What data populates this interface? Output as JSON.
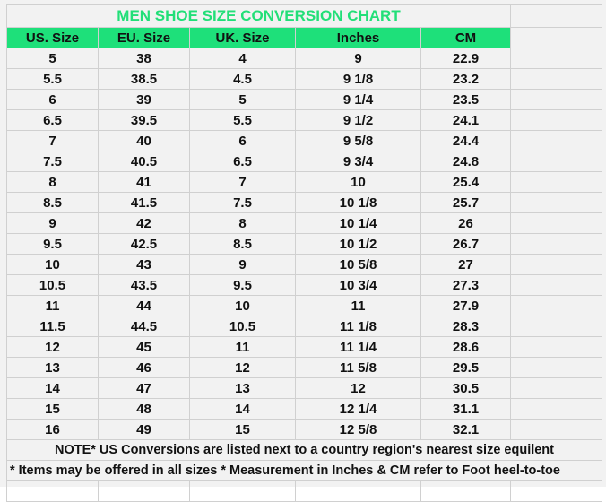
{
  "title": "MEN SHOE SIZE CONVERSION CHART",
  "headers": [
    "US. Size",
    "EU. Size",
    "UK. Size",
    "Inches",
    "CM"
  ],
  "rows": [
    [
      "5",
      "38",
      "4",
      "9",
      "22.9"
    ],
    [
      "5.5",
      "38.5",
      "4.5",
      "9 1/8",
      "23.2"
    ],
    [
      "6",
      "39",
      "5",
      "9 1/4",
      "23.5"
    ],
    [
      "6.5",
      "39.5",
      "5.5",
      "9 1/2",
      "24.1"
    ],
    [
      "7",
      "40",
      "6",
      "9 5/8",
      "24.4"
    ],
    [
      "7.5",
      "40.5",
      "6.5",
      "9 3/4",
      "24.8"
    ],
    [
      "8",
      "41",
      "7",
      "10",
      "25.4"
    ],
    [
      "8.5",
      "41.5",
      "7.5",
      "10 1/8",
      "25.7"
    ],
    [
      "9",
      "42",
      "8",
      "10 1/4",
      "26"
    ],
    [
      "9.5",
      "42.5",
      "8.5",
      "10 1/2",
      "26.7"
    ],
    [
      "10",
      "43",
      "9",
      "10 5/8",
      "27"
    ],
    [
      "10.5",
      "43.5",
      "9.5",
      "10 3/4",
      "27.3"
    ],
    [
      "11",
      "44",
      "10",
      "11",
      "27.9"
    ],
    [
      "11.5",
      "44.5",
      "10.5",
      "11 1/8",
      "28.3"
    ],
    [
      "12",
      "45",
      "11",
      "11 1/4",
      "28.6"
    ],
    [
      "13",
      "46",
      "12",
      "11 5/8",
      "29.5"
    ],
    [
      "14",
      "47",
      "13",
      "12",
      "30.5"
    ],
    [
      "15",
      "48",
      "14",
      "12 1/4",
      "31.1"
    ],
    [
      "16",
      "49",
      "15",
      "12 5/8",
      "32.1"
    ]
  ],
  "note1": "NOTE* US Conversions are listed next to a country region's nearest size equilent",
  "note2": "* Items may be offered in all sizes * Measurement in Inches & CM refer to Foot heel-to-toe",
  "colors": {
    "accent": "#1ee07a",
    "title": "#22df78"
  }
}
